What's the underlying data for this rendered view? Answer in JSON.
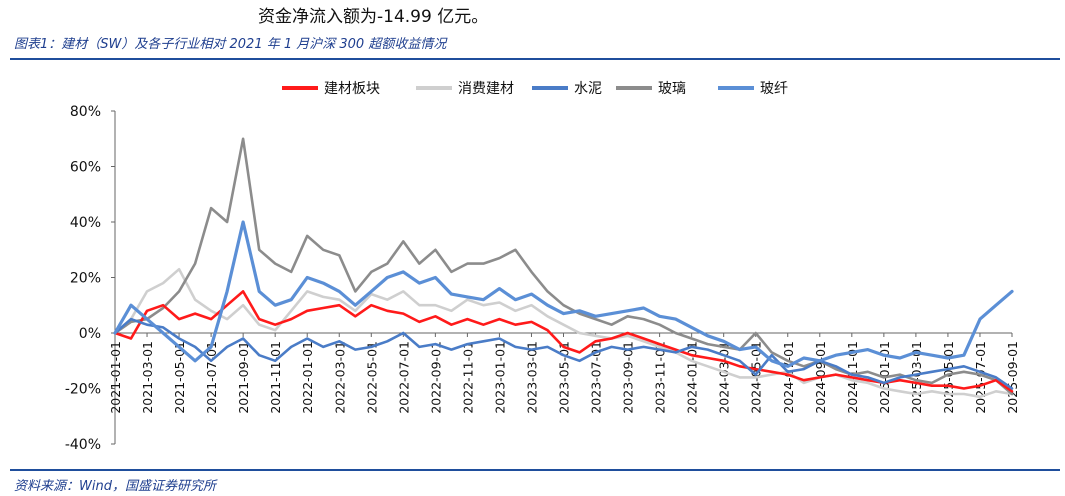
{
  "intro_text": "资金净流入额为-14.99 亿元。",
  "figure_title": "图表1：建材（SW）及各子行业相对 2021 年 1 月沪深 300 超额收益情况",
  "source_text": "资料来源：Wind，国盛证券研究所",
  "colors": {
    "建材板块": "#ff1a1a",
    "消费建材": "#cfcfcf",
    "水泥": "#4a7cc7",
    "玻璃": "#8c8c8c",
    "玻纤": "#5b8fd6"
  },
  "chart_data": {
    "type": "line",
    "title": "",
    "xlabel": "",
    "ylabel": "",
    "ylim": [
      -0.4,
      0.8
    ],
    "yticks": [
      "80%",
      "60%",
      "40%",
      "20%",
      "0%",
      "-20%",
      "-40%"
    ],
    "yticks_values": [
      0.8,
      0.6,
      0.4,
      0.2,
      0.0,
      -0.2,
      -0.4
    ],
    "xticks": [
      "2021-01-01",
      "2021-03-01",
      "2021-05-01",
      "2021-07-01",
      "2021-09-01",
      "2021-11-01",
      "2022-01-01",
      "2022-03-01",
      "2022-05-01",
      "2022-07-01",
      "2022-09-01",
      "2022-11-01",
      "2023-01-01",
      "2023-03-01",
      "2023-05-01",
      "2023-07-01",
      "2023-09-01",
      "2023-11-01",
      "2024-01-01",
      "2024-03-01",
      "2024-05-01",
      "2024-07-01",
      "2024-09-01",
      "2024-11-01",
      "2025-01-01",
      "2025-03-01",
      "2025-05-01",
      "2025-07-01",
      "2025-09-01"
    ],
    "legend_position": "top-center",
    "grid": false,
    "x": [
      "2021-01",
      "2021-02",
      "2021-03",
      "2021-04",
      "2021-05",
      "2021-06",
      "2021-07",
      "2021-08",
      "2021-09",
      "2021-10",
      "2021-11",
      "2021-12",
      "2022-01",
      "2022-02",
      "2022-03",
      "2022-04",
      "2022-05",
      "2022-06",
      "2022-07",
      "2022-08",
      "2022-09",
      "2022-10",
      "2022-11",
      "2022-12",
      "2023-01",
      "2023-02",
      "2023-03",
      "2023-04",
      "2023-05",
      "2023-06",
      "2023-07",
      "2023-08",
      "2023-09",
      "2023-10",
      "2023-11",
      "2023-12",
      "2024-01",
      "2024-02",
      "2024-03",
      "2024-04",
      "2024-05",
      "2024-06",
      "2024-07",
      "2024-08",
      "2024-09",
      "2024-10",
      "2024-11",
      "2024-12",
      "2025-01",
      "2025-02",
      "2025-03",
      "2025-04",
      "2025-05",
      "2025-06",
      "2025-07",
      "2025-08",
      "2025-09"
    ],
    "series": [
      {
        "name": "建材板块",
        "values": [
          0.0,
          -0.02,
          0.08,
          0.1,
          0.05,
          0.07,
          0.05,
          0.1,
          0.15,
          0.05,
          0.03,
          0.05,
          0.08,
          0.09,
          0.1,
          0.06,
          0.1,
          0.08,
          0.07,
          0.04,
          0.06,
          0.03,
          0.05,
          0.03,
          0.05,
          0.03,
          0.04,
          0.01,
          -0.05,
          -0.07,
          -0.03,
          -0.02,
          0.0,
          -0.02,
          -0.04,
          -0.06,
          -0.08,
          -0.09,
          -0.1,
          -0.12,
          -0.13,
          -0.14,
          -0.15,
          -0.17,
          -0.16,
          -0.15,
          -0.16,
          -0.17,
          -0.18,
          -0.17,
          -0.18,
          -0.19,
          -0.19,
          -0.2,
          -0.19,
          -0.17,
          -0.21
        ]
      },
      {
        "name": "消费建材",
        "values": [
          0.0,
          0.05,
          0.15,
          0.18,
          0.23,
          0.12,
          0.08,
          0.05,
          0.1,
          0.03,
          0.01,
          0.08,
          0.15,
          0.13,
          0.12,
          0.08,
          0.14,
          0.12,
          0.15,
          0.1,
          0.1,
          0.08,
          0.12,
          0.1,
          0.11,
          0.08,
          0.1,
          0.06,
          0.03,
          0.0,
          -0.01,
          -0.02,
          -0.01,
          -0.03,
          -0.05,
          -0.07,
          -0.1,
          -0.12,
          -0.14,
          -0.16,
          -0.16,
          -0.15,
          -0.14,
          -0.18,
          -0.16,
          -0.15,
          -0.17,
          -0.18,
          -0.2,
          -0.21,
          -0.22,
          -0.21,
          -0.22,
          -0.22,
          -0.23,
          -0.21,
          -0.22
        ]
      },
      {
        "name": "水泥",
        "values": [
          0.0,
          0.05,
          0.03,
          0.02,
          -0.02,
          -0.05,
          -0.1,
          -0.05,
          -0.02,
          -0.08,
          -0.1,
          -0.05,
          -0.02,
          -0.05,
          -0.03,
          -0.06,
          -0.05,
          -0.03,
          0.0,
          -0.05,
          -0.04,
          -0.06,
          -0.04,
          -0.03,
          -0.02,
          -0.05,
          -0.06,
          -0.05,
          -0.08,
          -0.1,
          -0.07,
          -0.05,
          -0.06,
          -0.05,
          -0.06,
          -0.07,
          -0.05,
          -0.06,
          -0.08,
          -0.1,
          -0.15,
          -0.08,
          -0.14,
          -0.13,
          -0.1,
          -0.12,
          -0.15,
          -0.16,
          -0.18,
          -0.16,
          -0.15,
          -0.14,
          -0.13,
          -0.12,
          -0.14,
          -0.16,
          -0.2
        ]
      },
      {
        "name": "玻璃",
        "values": [
          0.0,
          0.04,
          0.05,
          0.09,
          0.15,
          0.25,
          0.45,
          0.4,
          0.7,
          0.3,
          0.25,
          0.22,
          0.35,
          0.3,
          0.28,
          0.15,
          0.22,
          0.25,
          0.33,
          0.25,
          0.3,
          0.22,
          0.25,
          0.25,
          0.27,
          0.3,
          0.22,
          0.15,
          0.1,
          0.07,
          0.05,
          0.03,
          0.06,
          0.05,
          0.03,
          0.0,
          -0.02,
          -0.04,
          -0.05,
          -0.06,
          0.0,
          -0.07,
          -0.1,
          -0.12,
          -0.1,
          -0.13,
          -0.15,
          -0.14,
          -0.16,
          -0.15,
          -0.17,
          -0.18,
          -0.15,
          -0.14,
          -0.15,
          -0.17,
          -0.22
        ]
      },
      {
        "name": "玻纤",
        "values": [
          0.0,
          0.1,
          0.05,
          0.0,
          -0.05,
          -0.1,
          -0.05,
          0.15,
          0.4,
          0.15,
          0.1,
          0.12,
          0.2,
          0.18,
          0.15,
          0.1,
          0.15,
          0.2,
          0.22,
          0.18,
          0.2,
          0.14,
          0.13,
          0.12,
          0.16,
          0.12,
          0.14,
          0.1,
          0.07,
          0.08,
          0.06,
          0.07,
          0.08,
          0.09,
          0.06,
          0.05,
          0.02,
          -0.01,
          -0.03,
          -0.06,
          -0.05,
          -0.1,
          -0.12,
          -0.09,
          -0.1,
          -0.08,
          -0.07,
          -0.06,
          -0.08,
          -0.09,
          -0.07,
          -0.08,
          -0.09,
          -0.08,
          0.05,
          0.1,
          0.15
        ]
      }
    ]
  }
}
